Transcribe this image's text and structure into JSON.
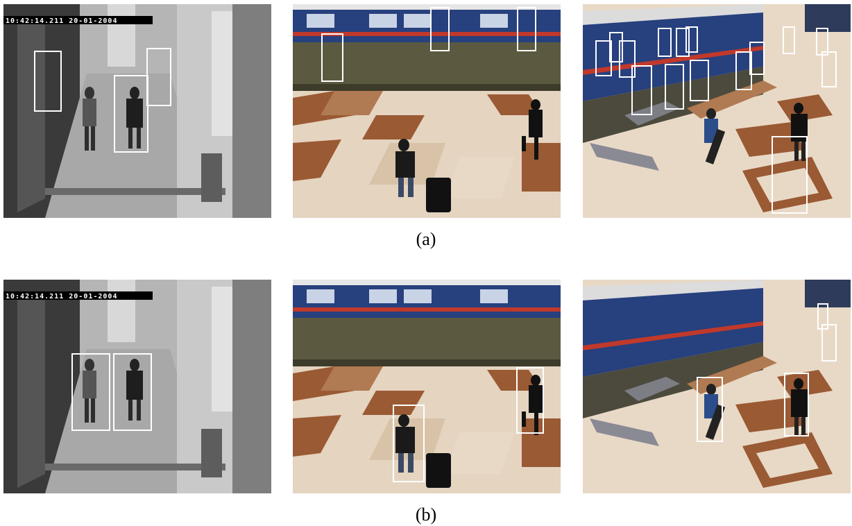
{
  "rows": [
    {
      "caption": "(a)",
      "panels": [
        {
          "scene": "corridor",
          "timestamp": "10:42:14.211  20-01-2004",
          "detections": 3
        },
        {
          "scene": "platform",
          "detections": 3
        },
        {
          "scene": "concourse",
          "detections": 17
        }
      ]
    },
    {
      "caption": "(b)",
      "panels": [
        {
          "scene": "corridor",
          "timestamp": "10:42:14.211  20-01-2004",
          "detections": 2
        },
        {
          "scene": "platform",
          "detections": 2
        },
        {
          "scene": "concourse",
          "detections": 4
        }
      ]
    }
  ],
  "colors": {
    "box": "#ffffff",
    "tile_light": "#e8d9c6",
    "tile_brown": "#9a5a34",
    "train_blue": "#27407e"
  }
}
